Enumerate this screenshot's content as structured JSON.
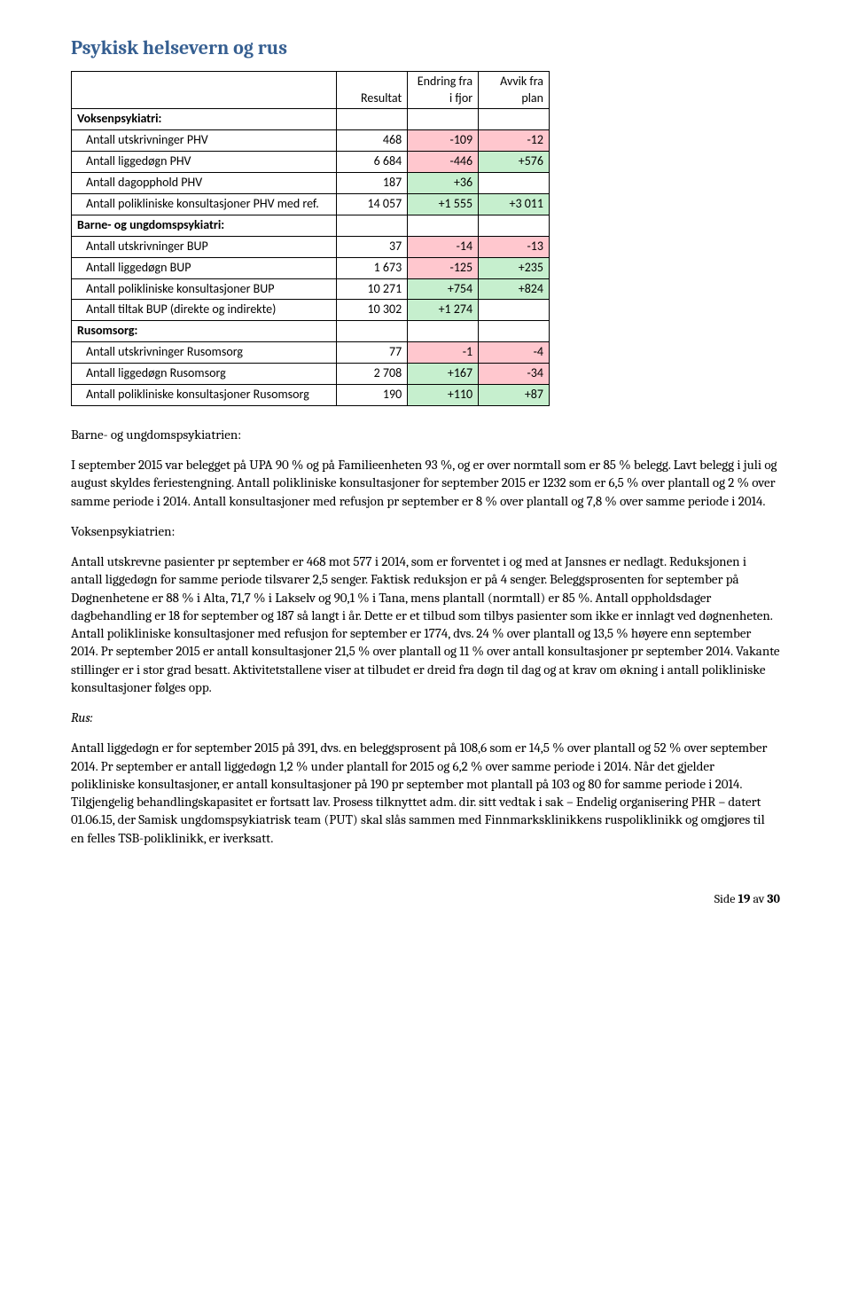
{
  "colors": {
    "heading": "#365f91",
    "good": "#c6efce",
    "bad": "#ffc7ce",
    "border": "#000000",
    "text": "#000000"
  },
  "title": "Psykisk helsevern og rus",
  "table": {
    "headers": [
      "",
      "Resultat",
      "Endring fra i fjor",
      "Avvik fra plan"
    ],
    "sections": [
      {
        "label": "Voksenpsykiatri:",
        "rows": [
          {
            "label": "Antall utskrivninger PHV",
            "result": "468",
            "change": "-109",
            "change_bad": true,
            "dev": "-12",
            "dev_bad": true
          },
          {
            "label": "Antall liggedøgn PHV",
            "result": "6 684",
            "change": "-446",
            "change_bad": true,
            "dev": "+576",
            "dev_good": true
          },
          {
            "label": "Antall dagopphold PHV",
            "result": "187",
            "change": "+36",
            "change_good": true,
            "dev": "",
            "dev_blank": true
          },
          {
            "label": "Antall polikliniske konsultasjoner PHV med ref.",
            "result": "14 057",
            "change": "+1 555",
            "change_good": true,
            "dev": "+3 011",
            "dev_good": true
          }
        ]
      },
      {
        "label": "Barne- og ungdomspsykiatri:",
        "rows": [
          {
            "label": "Antall utskrivninger BUP",
            "result": "37",
            "change": "-14",
            "change_bad": true,
            "dev": "-13",
            "dev_bad": true
          },
          {
            "label": "Antall liggedøgn BUP",
            "result": "1 673",
            "change": "-125",
            "change_bad": true,
            "dev": "+235",
            "dev_good": true
          },
          {
            "label": "Antall polikliniske konsultasjoner BUP",
            "result": "10 271",
            "change": "+754",
            "change_good": true,
            "dev": "+824",
            "dev_good": true
          },
          {
            "label": "Antall tiltak BUP (direkte og indirekte)",
            "result": "10 302",
            "change": "+1 274",
            "change_good": true,
            "dev": "",
            "dev_blank": true
          }
        ]
      },
      {
        "label": "Rusomsorg:",
        "rows": [
          {
            "label": "Antall utskrivninger Rusomsorg",
            "result": "77",
            "change": "-1",
            "change_bad": true,
            "dev": "-4",
            "dev_bad": true
          },
          {
            "label": "Antall liggedøgn Rusomsorg",
            "result": "2 708",
            "change": "+167",
            "change_good": true,
            "dev": "-34",
            "dev_bad": true
          },
          {
            "label": "Antall polikliniske konsultasjoner Rusomsorg",
            "result": "190",
            "change": "+110",
            "change_good": true,
            "dev": "+87",
            "dev_good": true
          }
        ]
      }
    ]
  },
  "body": {
    "sub1": "Barne- og ungdomspsykiatrien:",
    "p1": "I september 2015 var belegget på UPA 90 % og på Familieenheten 93 %, og er over normtall som er 85 % belegg. Lavt belegg i juli og august skyldes feriestengning. Antall polikliniske konsultasjoner for september 2015 er 1232 som er 6,5 % over plantall og 2 % over samme periode i 2014. Antall konsultasjoner med refusjon pr september er 8 % over plantall og 7,8 % over samme periode i 2014.",
    "sub2": "Voksenpsykiatrien:",
    "p2": "Antall utskrevne pasienter pr september er 468 mot 577 i 2014, som er forventet i og med at Jansnes er nedlagt. Reduksjonen i antall liggedøgn for samme periode tilsvarer 2,5 senger. Faktisk reduksjon er på 4 senger. Beleggsprosenten for september på Døgnenhetene er 88 % i Alta, 71,7 % i Lakselv og 90,1 % i Tana, mens plantall (normtall) er 85 %. Antall oppholdsdager dagbehandling er 18 for september og 187 så langt i år. Dette er et tilbud som tilbys pasienter som ikke er innlagt ved døgnenheten. Antall polikliniske konsultasjoner med refusjon for september er 1774, dvs. 24 % over plantall og 13,5 % høyere enn september 2014.  Pr september 2015 er antall konsultasjoner 21,5 % over plantall og 11 % over antall konsultasjoner pr september 2014. Vakante stillinger er i stor grad besatt. Aktivitetstallene viser at tilbudet er dreid fra døgn til dag og at krav om økning i antall polikliniske konsultasjoner følges opp.",
    "sub3": "Rus:",
    "p3": "Antall liggedøgn er for september 2015 på 391, dvs. en beleggsprosent på 108,6 som er 14,5 % over plantall og 52 % over september 2014. Pr september er antall liggedøgn 1,2 % under plantall for 2015 og 6,2 % over samme periode i 2014. Når det gjelder polikliniske konsultasjoner, er antall konsultasjoner på 190 pr september mot plantall på 103 og 80 for samme periode i 2014. Tilgjengelig behandlingskapasitet er fortsatt lav. Prosess tilknyttet adm. dir. sitt vedtak i sak – Endelig organisering PHR – datert 01.06.15, der Samisk ungdomspsykiatrisk team (PUT) skal slås sammen med Finnmarksklinikkens ruspoliklinikk og omgjøres til en felles TSB-poliklinikk, er iverksatt."
  },
  "footer": {
    "prefix": "Side ",
    "page": "19",
    "mid": " av ",
    "total": "30"
  }
}
